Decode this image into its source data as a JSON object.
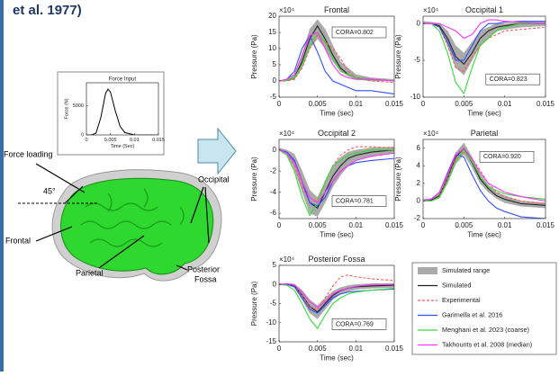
{
  "header": {
    "text": "et al. 1977)"
  },
  "diagram": {
    "force_loading": "Force loading",
    "angle": "45°",
    "frontal": "Frontal",
    "parietal": "Parietal",
    "occipital": "Occipital",
    "posterior": "Posterior",
    "fossa": "Fossa"
  },
  "chart_data": [
    {
      "type": "line",
      "title": "Force Input",
      "xlabel": "Time (Sec)",
      "ylabel": "Force (N)",
      "x": [
        0,
        0.001,
        0.002,
        0.003,
        0.004,
        0.0045,
        0.005,
        0.006,
        0.007,
        0.008,
        0.01,
        0.015
      ],
      "series": [
        {
          "color": "#000000",
          "values": [
            0,
            0,
            300,
            3000,
            7200,
            7900,
            7400,
            4200,
            1500,
            400,
            0,
            0
          ]
        }
      ],
      "xlim": [
        0,
        0.015
      ],
      "xticks": [
        0,
        0.005,
        0.01,
        0.015
      ],
      "ylim": [
        0,
        9000
      ],
      "yticks": [
        0,
        5000
      ]
    },
    {
      "type": "line",
      "title": "Frontal",
      "multiplier": "×10⁴",
      "xlabel": "Time (sec)",
      "ylabel": "Pressure (Pa)",
      "annotation": "CORA=0.802",
      "x": [
        0,
        0.001,
        0.002,
        0.003,
        0.004,
        0.005,
        0.006,
        0.007,
        0.008,
        0.009,
        0.01,
        0.012,
        0.015
      ],
      "xlim": [
        0,
        0.015
      ],
      "xticks": [
        0,
        0.005,
        0.01,
        0.015
      ],
      "ylim": [
        -5,
        20
      ],
      "yticks": [
        -5,
        0,
        5,
        10,
        15,
        20
      ],
      "series": [
        {
          "color": "#aaaaaa",
          "low": [
            0,
            0,
            0.5,
            4,
            10,
            13,
            10,
            6,
            3,
            1.5,
            0.5,
            0,
            0
          ],
          "high": [
            0,
            0.5,
            2,
            8,
            16,
            19,
            16,
            11,
            6,
            4,
            2,
            1,
            0.5
          ]
        },
        {
          "color": "#222222",
          "values": [
            0,
            0.2,
            1,
            6,
            13,
            17,
            13,
            8,
            4,
            2,
            1,
            0.5,
            0
          ]
        },
        {
          "color": "#ff5a5a",
          "style": "dashed",
          "values": [
            0,
            0,
            0.5,
            4,
            10,
            14,
            12,
            10,
            7,
            3,
            1,
            0,
            -0.5
          ]
        },
        {
          "color": "#3050ff",
          "values": [
            0,
            0.5,
            3,
            10,
            14,
            9,
            3,
            0,
            -1,
            -2,
            -3,
            -3,
            -4
          ]
        },
        {
          "color": "#33dd33",
          "values": [
            0,
            0.2,
            1,
            5,
            11,
            15,
            12,
            7,
            3,
            2,
            1,
            0.5,
            0
          ]
        },
        {
          "color": "#ff33ff",
          "values": [
            0,
            0.5,
            2,
            8,
            14,
            15,
            10,
            5,
            2,
            1,
            0.5,
            0.5,
            0
          ]
        }
      ]
    },
    {
      "type": "line",
      "title": "Occipital 1",
      "multiplier": "×10⁴",
      "xlabel": "Time (sec)",
      "ylabel": "Pressure (Pa)",
      "annotation": "CORA=0.823",
      "x": [
        0,
        0.001,
        0.002,
        0.003,
        0.004,
        0.005,
        0.006,
        0.007,
        0.008,
        0.009,
        0.01,
        0.012,
        0.015
      ],
      "xlim": [
        0,
        0.015
      ],
      "xticks": [
        0,
        0.005,
        0.01,
        0.015
      ],
      "ylim": [
        -10,
        1
      ],
      "yticks": [
        -10,
        -5,
        0
      ],
      "series": [
        {
          "color": "#aaaaaa",
          "low": [
            0,
            0,
            -0.5,
            -3,
            -6,
            -7,
            -5,
            -3,
            -2,
            -1,
            -0.8,
            -0.5,
            -0.3
          ],
          "high": [
            0.3,
            0.2,
            0,
            -1,
            -3,
            -4,
            -2.5,
            -1,
            -0.5,
            0,
            0,
            0.2,
            0.3
          ]
        },
        {
          "color": "#222222",
          "values": [
            0,
            0,
            -0.3,
            -2,
            -4.5,
            -5.5,
            -4,
            -2,
            -1,
            -0.5,
            -0.3,
            0,
            0
          ]
        },
        {
          "color": "#ff5a5a",
          "style": "dashed",
          "values": [
            0,
            0,
            -0.5,
            -3,
            -6,
            -6.5,
            -4.5,
            -3,
            -2,
            -1.5,
            -1,
            -0.8,
            -0.5
          ]
        },
        {
          "color": "#3050ff",
          "values": [
            0,
            0,
            -0.5,
            -2.5,
            -5,
            -5,
            -3,
            -1,
            0,
            0,
            0.2,
            0.3,
            0.3
          ]
        },
        {
          "color": "#33dd33",
          "values": [
            0,
            0,
            -1,
            -4,
            -8,
            -9.5,
            -6,
            -3,
            -2,
            -1,
            -0.5,
            0,
            0
          ]
        },
        {
          "color": "#ff33ff",
          "values": [
            0,
            0,
            0,
            -0.5,
            -1,
            -2,
            -1.5,
            0,
            0.5,
            0.5,
            0.3,
            0.2,
            0
          ]
        }
      ]
    },
    {
      "type": "line",
      "title": "Occipital 2",
      "multiplier": "×10⁴",
      "xlabel": "Time (sec)",
      "ylabel": "Pressure (Pa)",
      "annotation": "CORA=0.781",
      "x": [
        0,
        0.001,
        0.002,
        0.003,
        0.004,
        0.005,
        0.006,
        0.007,
        0.008,
        0.009,
        0.01,
        0.012,
        0.015
      ],
      "xlim": [
        0,
        0.015
      ],
      "xticks": [
        0,
        0.005,
        0.01,
        0.015
      ],
      "ylim": [
        -6.5,
        1
      ],
      "yticks": [
        -6,
        -4,
        -2,
        0
      ],
      "series": [
        {
          "color": "#aaaaaa",
          "low": [
            0,
            -0.4,
            -1.8,
            -4,
            -6,
            -6.3,
            -5,
            -3.5,
            -2.4,
            -1.5,
            -1,
            -0.6,
            -0.3
          ],
          "high": [
            0.2,
            0,
            -0.4,
            -2,
            -3.8,
            -4.5,
            -3,
            -1.5,
            -0.7,
            -0.2,
            0,
            0.2,
            0.3
          ]
        },
        {
          "color": "#222222",
          "values": [
            0,
            -0.2,
            -1,
            -3,
            -5,
            -5.5,
            -4,
            -2.5,
            -1.5,
            -0.8,
            -0.5,
            -0.2,
            0
          ]
        },
        {
          "color": "#ff5a5a",
          "style": "dashed",
          "values": [
            0,
            -0.3,
            -1.5,
            -3.5,
            -5,
            -4.8,
            -3,
            -1.5,
            -0.5,
            0,
            0.3,
            0.3,
            0.2
          ]
        },
        {
          "color": "#3050ff",
          "values": [
            0,
            -0.2,
            -1,
            -3,
            -5,
            -5.3,
            -4.5,
            -3,
            -2,
            -1.5,
            -1.2,
            -1,
            -0.8
          ]
        },
        {
          "color": "#33dd33",
          "values": [
            0,
            -0.5,
            -2,
            -4.5,
            -6.2,
            -5,
            -3,
            -1.5,
            -1,
            -0.5,
            -0.3,
            0,
            0
          ]
        },
        {
          "color": "#ff33ff",
          "values": [
            0,
            -0.3,
            -1.2,
            -3,
            -4.5,
            -5,
            -4,
            -3,
            -2,
            -1.5,
            -1,
            -0.6,
            -0.3
          ]
        }
      ]
    },
    {
      "type": "line",
      "title": "Parietal",
      "multiplier": "×10⁴",
      "xlabel": "Time (sec)",
      "ylabel": "Pressure (Pa)",
      "annotation": "CORA=0.920",
      "x": [
        0,
        0.001,
        0.002,
        0.003,
        0.004,
        0.005,
        0.006,
        0.007,
        0.008,
        0.009,
        0.01,
        0.012,
        0.015
      ],
      "xlim": [
        0,
        0.015
      ],
      "xticks": [
        0,
        0.005,
        0.01,
        0.015
      ],
      "ylim": [
        -2,
        7
      ],
      "yticks": [
        -2,
        0,
        2,
        4,
        6
      ],
      "series": [
        {
          "color": "#aaaaaa",
          "low": [
            0,
            0,
            0.3,
            2,
            4.2,
            5.3,
            3.8,
            2,
            1,
            0.3,
            -0.2,
            -0.6,
            -0.8
          ],
          "high": [
            0.2,
            0.3,
            1,
            3.3,
            5.5,
            6.6,
            5,
            3,
            1.8,
            1,
            0.6,
            0,
            -0.2
          ]
        },
        {
          "color": "#222222",
          "values": [
            0,
            0.1,
            0.6,
            2.6,
            5,
            6,
            4.4,
            2.5,
            1.4,
            0.6,
            0.2,
            -0.3,
            -0.5
          ]
        },
        {
          "color": "#ff5a5a",
          "style": "dashed",
          "values": [
            0,
            0,
            0.5,
            2.5,
            4.8,
            5.5,
            4.8,
            3.5,
            2,
            1,
            0.5,
            0,
            -0.3
          ]
        },
        {
          "color": "#3050ff",
          "values": [
            0,
            0.2,
            1,
            3.2,
            5.3,
            5,
            3,
            1.2,
            0,
            -0.8,
            -1.2,
            -1.8,
            -2
          ]
        },
        {
          "color": "#33dd33",
          "values": [
            0,
            0,
            0.4,
            2.2,
            4.5,
            5.8,
            4.5,
            2.8,
            1.6,
            1.2,
            0.8,
            0.5,
            0.2
          ]
        },
        {
          "color": "#ff33ff",
          "values": [
            0,
            0.2,
            1,
            3,
            5.2,
            6,
            4.8,
            3.2,
            2,
            1.5,
            1,
            0.5,
            0
          ]
        }
      ]
    },
    {
      "type": "line",
      "title": "Posterior Fossa",
      "multiplier": "×10⁴",
      "xlabel": "Time (sec)",
      "ylabel": "Pressure (Pa)",
      "annotation": "CORA=0.769",
      "x": [
        0,
        0.001,
        0.002,
        0.003,
        0.004,
        0.005,
        0.006,
        0.007,
        0.008,
        0.009,
        0.01,
        0.012,
        0.015
      ],
      "xlim": [
        0,
        0.015
      ],
      "xticks": [
        0,
        0.005,
        0.01,
        0.015
      ],
      "ylim": [
        -15,
        5
      ],
      "yticks": [
        -15,
        -10,
        -5,
        0,
        5
      ],
      "series": [
        {
          "name": "Simulated range",
          "color": "#aaaaaa",
          "low": [
            0,
            0,
            -0.8,
            -4,
            -7.5,
            -9,
            -6.5,
            -4,
            -2.5,
            -1.8,
            -1.3,
            -1,
            -0.8
          ],
          "high": [
            0.3,
            0.2,
            0,
            -1.5,
            -4,
            -5.5,
            -3.5,
            -1.8,
            -0.8,
            -0.3,
            0,
            0.2,
            0.3
          ]
        },
        {
          "name": "Simulated",
          "color": "#222222",
          "values": [
            0,
            0.1,
            -0.4,
            -2.8,
            -5.8,
            -7.2,
            -5,
            -2.9,
            -1.6,
            -1,
            -0.6,
            -0.4,
            -0.2
          ]
        },
        {
          "name": "Experimental",
          "color": "#ff5a5a",
          "style": "dashed",
          "values": [
            0,
            0,
            -0.5,
            -3,
            -6,
            -6.5,
            -3.5,
            -0.5,
            2,
            2.5,
            2,
            1.5,
            1
          ]
        },
        {
          "name": "Garimella et al. 2016",
          "color": "#3050ff",
          "values": [
            0,
            0,
            -0.6,
            -3.5,
            -6.5,
            -7.5,
            -5.5,
            -3.5,
            -2.5,
            -2,
            -1.8,
            -1.5,
            -1.2
          ]
        },
        {
          "name": "Menghani et al. 2023 (coarse)",
          "color": "#33dd33",
          "values": [
            0,
            -0.2,
            -1.5,
            -5,
            -9,
            -11.5,
            -8,
            -5,
            -3.5,
            -2.5,
            -2,
            -1.5,
            -1
          ]
        },
        {
          "name": "Takhounts et al. 2008 (median)",
          "color": "#ff33ff",
          "values": [
            0,
            0.2,
            0,
            -2,
            -4.5,
            -6,
            -4.5,
            -2.5,
            -1.5,
            -1,
            -0.5,
            0,
            0
          ]
        }
      ]
    }
  ]
}
